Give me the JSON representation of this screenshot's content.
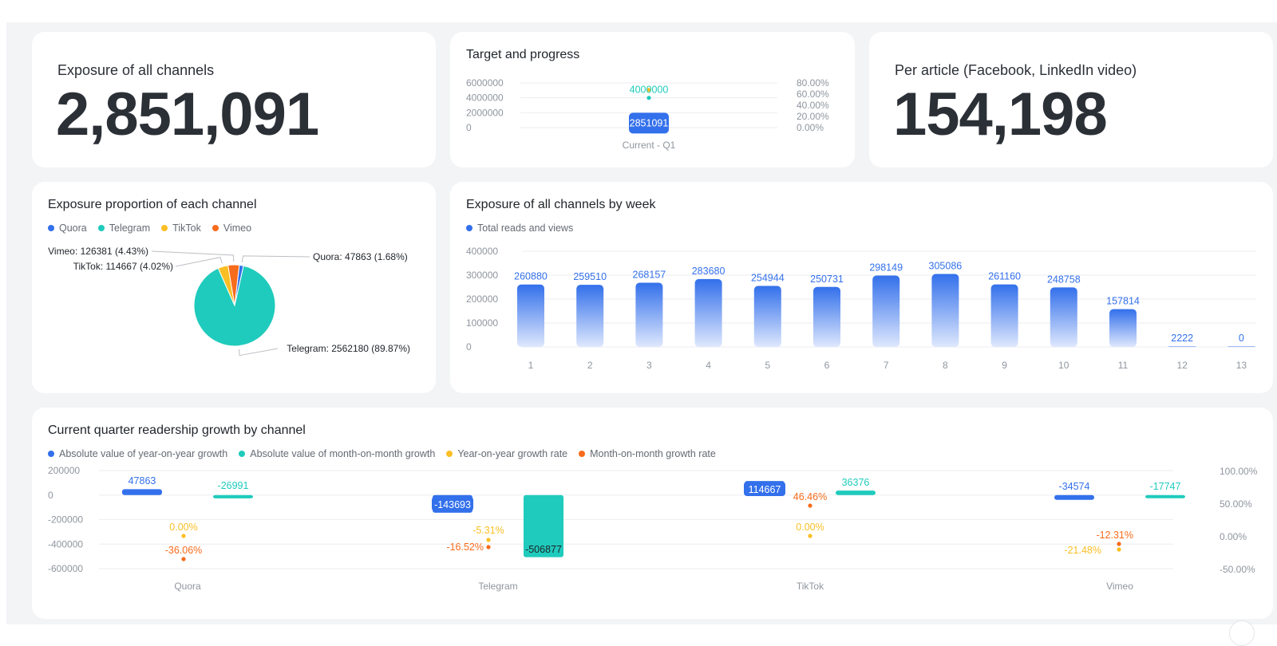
{
  "colors": {
    "blue": "#3370eb",
    "teal": "#1fcbbc",
    "yellow": "#fbbf24",
    "orange": "#f76b1c",
    "grid": "#eceef1",
    "axis": "#8f959e"
  },
  "kpi1": {
    "label": "Exposure of all channels",
    "value": "2,851,091"
  },
  "kpi2": {
    "label": "Per article (Facebook, LinkedIn video)",
    "value": "154,198"
  },
  "target": {
    "title": "Target and progress",
    "chart_data": {
      "type": "bar",
      "categories": [
        "Current - Q1"
      ],
      "target_value": 4000000,
      "target_label": "4000000",
      "current_value": 2851091,
      "current_label": "2851091",
      "y_ticks": [
        "6000000",
        "4000000",
        "2000000",
        "0"
      ],
      "y2_ticks": [
        "80.00%",
        "60.00%",
        "40.00%",
        "20.00%",
        "0.00%"
      ],
      "ylim": [
        0,
        6000000
      ]
    }
  },
  "pie": {
    "title": "Exposure proportion of each channel",
    "legend": [
      {
        "name": "Quora",
        "color": "#3370eb"
      },
      {
        "name": "Telegram",
        "color": "#1fcbbc"
      },
      {
        "name": "TikTok",
        "color": "#fbbf24"
      },
      {
        "name": "Vimeo",
        "color": "#f76b1c"
      }
    ],
    "chart_data": {
      "type": "pie",
      "slices": [
        {
          "name": "Quora",
          "value": 47863,
          "label": "Quora: 47863 (1.68%)"
        },
        {
          "name": "Telegram",
          "value": 2562180,
          "label": "Telegram: 2562180 (89.87%)"
        },
        {
          "name": "TikTok",
          "value": 114667,
          "label": "TikTok: 114667 (4.02%)"
        },
        {
          "name": "Vimeo",
          "value": 126381,
          "label": "Vimeo: 126381 (4.43%)"
        }
      ]
    }
  },
  "weekly": {
    "title": "Exposure of all channels by week",
    "legend": [
      {
        "name": "Total reads and views",
        "color": "#3370eb"
      }
    ],
    "chart_data": {
      "type": "bar",
      "categories": [
        "1",
        "2",
        "3",
        "4",
        "5",
        "6",
        "7",
        "8",
        "9",
        "10",
        "11",
        "12",
        "13"
      ],
      "values": [
        260880,
        259510,
        268157,
        283680,
        254944,
        250731,
        298149,
        305086,
        261160,
        248758,
        157814,
        2222,
        0
      ],
      "y_ticks": [
        "400000",
        "300000",
        "200000",
        "100000",
        "0"
      ],
      "ylim": [
        0,
        400000
      ]
    }
  },
  "growth": {
    "title": "Current quarter readership growth by channel",
    "legend": [
      {
        "name": "Absolute value of year-on-year growth",
        "color": "#3370eb"
      },
      {
        "name": "Absolute value of month-on-month growth",
        "color": "#1fcbbc"
      },
      {
        "name": "Year-on-year growth rate",
        "color": "#fbbf24"
      },
      {
        "name": "Month-on-month growth rate",
        "color": "#f76b1c"
      }
    ],
    "chart_data": {
      "type": "bar",
      "categories": [
        "Quora",
        "Telegram",
        "TikTok",
        "Vimeo"
      ],
      "series": [
        {
          "name": "Absolute value of year-on-year growth",
          "values": [
            47863,
            -143693,
            114667,
            -34574
          ],
          "labels": [
            "47863",
            "-143693",
            "114667",
            "-34574"
          ]
        },
        {
          "name": "Absolute value of month-on-month growth",
          "values": [
            -26991,
            -506877,
            36376,
            -17747
          ],
          "labels": [
            "-26991",
            "-506877",
            "36376",
            "-17747"
          ]
        },
        {
          "name": "Year-on-year growth rate",
          "values": [
            0.0,
            -5.31,
            0.0,
            -21.48
          ],
          "labels": [
            "0.00%",
            "-5.31%",
            "0.00%",
            "-21.48%"
          ]
        },
        {
          "name": "Month-on-month growth rate",
          "values": [
            -36.06,
            -16.52,
            46.46,
            -12.31
          ],
          "labels": [
            "-36.06%",
            "-16.52%",
            "46.46%",
            "-12.31%"
          ]
        }
      ],
      "y_ticks": [
        "200000",
        "0",
        "-200000",
        "-400000",
        "-600000"
      ],
      "y2_ticks": [
        "100.00%",
        "50.00%",
        "0.00%",
        "-50.00%"
      ],
      "ylim": [
        -600000,
        200000
      ],
      "y2lim": [
        -50,
        100
      ]
    }
  }
}
